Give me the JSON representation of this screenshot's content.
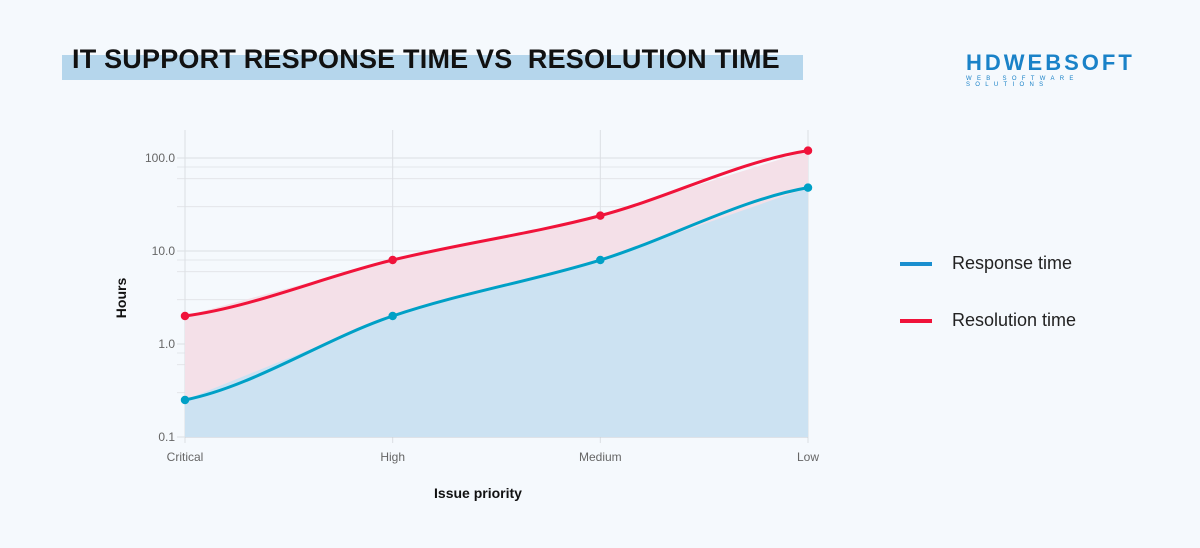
{
  "header": {
    "title": "IT SUPPORT RESPONSE TIME VS  RESOLUTION TIME"
  },
  "logo": {
    "main": "HDWEBSOFT",
    "sub": "WEB SOFTWARE SOLUTIONS"
  },
  "chart_data": {
    "type": "area",
    "title": "",
    "xlabel": "Issue priority",
    "ylabel": "Hours",
    "y_scale": "log",
    "ylim": [
      0.1,
      200
    ],
    "y_tick_labels": [
      "0.1",
      "1.0",
      "10.0",
      "100.0"
    ],
    "grid": true,
    "legend_position": "right",
    "categories": [
      "Critical",
      "High",
      "Medium",
      "Low"
    ],
    "series": [
      {
        "name": "Response time",
        "values": [
          0.25,
          2,
          8,
          48
        ],
        "color": "#00a0c6",
        "fill": "#cce2f2"
      },
      {
        "name": "Resolution time",
        "values": [
          2,
          8,
          24,
          120
        ],
        "color": "#f0133a",
        "fill": "#f4e0e8"
      }
    ]
  }
}
